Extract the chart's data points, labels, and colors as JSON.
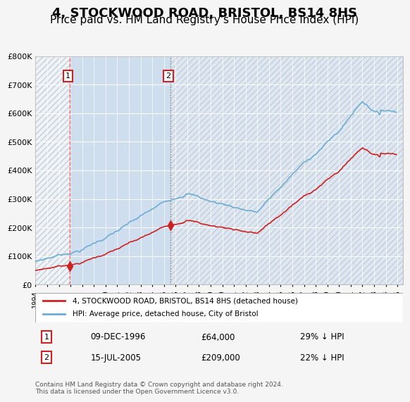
{
  "title": "4, STOCKWOOD ROAD, BRISTOL, BS14 8HS",
  "subtitle": "Price paid vs. HM Land Registry's House Price Index (HPI)",
  "title_fontsize": 13,
  "subtitle_fontsize": 11,
  "xlabel": "",
  "ylabel": "",
  "ylim": [
    0,
    800000
  ],
  "yticks": [
    0,
    100000,
    200000,
    300000,
    400000,
    500000,
    600000,
    700000,
    800000
  ],
  "ytick_labels": [
    "£0",
    "£100K",
    "£200K",
    "£300K",
    "£400K",
    "£500K",
    "£600K",
    "£700K",
    "£800K"
  ],
  "bg_color": "#e8f0f8",
  "plot_bg_color": "#dce8f5",
  "grid_color": "#ffffff",
  "hpi_color": "#6eadd4",
  "price_color": "#cc2222",
  "sale1_date_idx": 1996.94,
  "sale1_price": 64000,
  "sale2_date_idx": 2005.54,
  "sale2_price": 209000,
  "vline1_color": "#ff6666",
  "vline2_color": "#aaaaaa",
  "shade_color": "#c5d8ec",
  "legend_label_red": "4, STOCKWOOD ROAD, BRISTOL, BS14 8HS (detached house)",
  "legend_label_blue": "HPI: Average price, detached house, City of Bristol",
  "table_row1": [
    "1",
    "09-DEC-1996",
    "£64,000",
    "29% ↓ HPI"
  ],
  "table_row2": [
    "2",
    "15-JUL-2005",
    "£209,000",
    "22% ↓ HPI"
  ],
  "footer": "Contains HM Land Registry data © Crown copyright and database right 2024.\nThis data is licensed under the Open Government Licence v3.0.",
  "xmin": 1994,
  "xmax": 2025.5
}
